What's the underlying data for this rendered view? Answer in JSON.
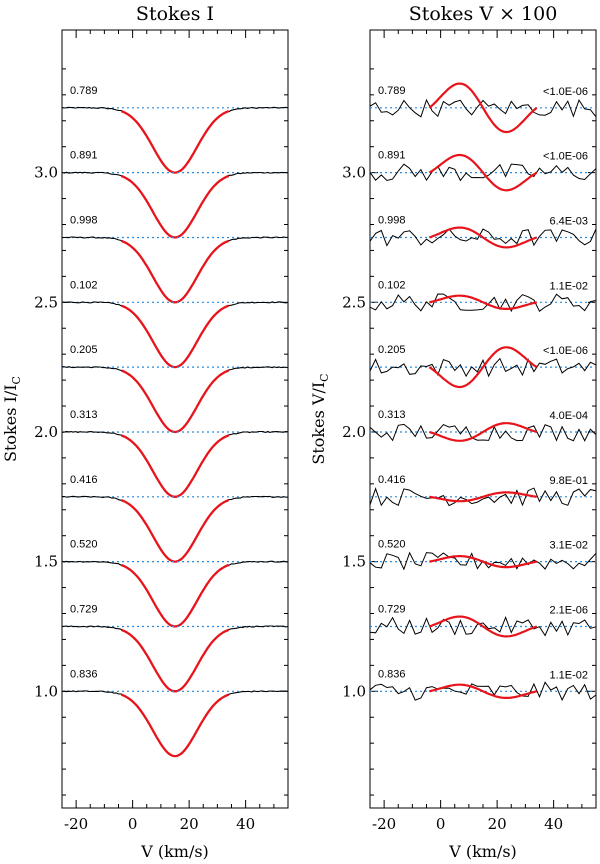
{
  "chart_data": [
    {
      "type": "line",
      "title": "Stokes I",
      "xlabel": "V (km/s)",
      "ylabel": "Stokes I/I",
      "ylabel_sub": "C",
      "xlim": [
        -25,
        55
      ],
      "ylim": [
        0.55,
        3.55
      ],
      "xticks": [
        -20,
        0,
        20,
        40
      ],
      "xtick_labels": [
        "-20",
        "0",
        "20",
        "40"
      ],
      "yticks": [
        1.0,
        1.5,
        2.0,
        2.5,
        3.0
      ],
      "ytick_labels": [
        "1.0",
        "1.5",
        "2.0",
        "2.5",
        "3.0"
      ],
      "profile": {
        "center": 15,
        "depth": 0.25,
        "sigma": 7.8,
        "fit_range": [
          -4,
          34
        ]
      },
      "series": [
        {
          "phase": "0.789",
          "offset": 3.25
        },
        {
          "phase": "0.891",
          "offset": 3.0
        },
        {
          "phase": "0.998",
          "offset": 2.75
        },
        {
          "phase": "0.102",
          "offset": 2.5
        },
        {
          "phase": "0.205",
          "offset": 2.25
        },
        {
          "phase": "0.313",
          "offset": 2.0
        },
        {
          "phase": "0.416",
          "offset": 1.75
        },
        {
          "phase": "0.520",
          "offset": 1.5
        },
        {
          "phase": "0.729",
          "offset": 1.25
        },
        {
          "phase": "0.836",
          "offset": 1.0
        }
      ],
      "colors": {
        "observed": "#000000",
        "model": "#e8141b",
        "continuum": "#2b8ad9"
      }
    },
    {
      "type": "line",
      "title": "Stokes V × 100",
      "xlabel": "V (km/s)",
      "ylabel": "Stokes V/I",
      "ylabel_sub": "C",
      "xlim": [
        -25,
        55
      ],
      "ylim": [
        0.55,
        3.55
      ],
      "xticks": [
        -20,
        0,
        20,
        40
      ],
      "xtick_labels": [
        "-20",
        "0",
        "20",
        "40"
      ],
      "yticks": [
        1.0,
        1.5,
        2.0,
        2.5,
        3.0
      ],
      "ytick_labels": [
        "1.0",
        "1.5",
        "2.0",
        "2.5",
        "3.0"
      ],
      "fit_range": [
        -4,
        34
      ],
      "series": [
        {
          "phase": "0.789",
          "offset": 3.25,
          "fap": "<1.0E-06",
          "amplitude": 0.11
        },
        {
          "phase": "0.891",
          "offset": 3.0,
          "fap": "<1.0E-06",
          "amplitude": 0.08
        },
        {
          "phase": "0.998",
          "offset": 2.75,
          "fap": "6.4E-03",
          "amplitude": 0.045
        },
        {
          "phase": "0.102",
          "offset": 2.5,
          "fap": "1.1E-02",
          "amplitude": 0.03
        },
        {
          "phase": "0.205",
          "offset": 2.25,
          "fap": "<1.0E-06",
          "amplitude": -0.09
        },
        {
          "phase": "0.313",
          "offset": 2.0,
          "fap": "4.0E-04",
          "amplitude": -0.04
        },
        {
          "phase": "0.416",
          "offset": 1.75,
          "fap": "9.8E-01",
          "amplitude": -0.02
        },
        {
          "phase": "0.520",
          "offset": 1.5,
          "fap": "3.1E-02",
          "amplitude": 0.025
        },
        {
          "phase": "0.729",
          "offset": 1.25,
          "fap": "2.1E-06",
          "amplitude": 0.045
        },
        {
          "phase": "0.836",
          "offset": 1.0,
          "fap": "1.1E-02",
          "amplitude": 0.03
        }
      ],
      "colors": {
        "observed": "#000000",
        "model": "#e8141b",
        "continuum": "#2b8ad9"
      }
    }
  ]
}
